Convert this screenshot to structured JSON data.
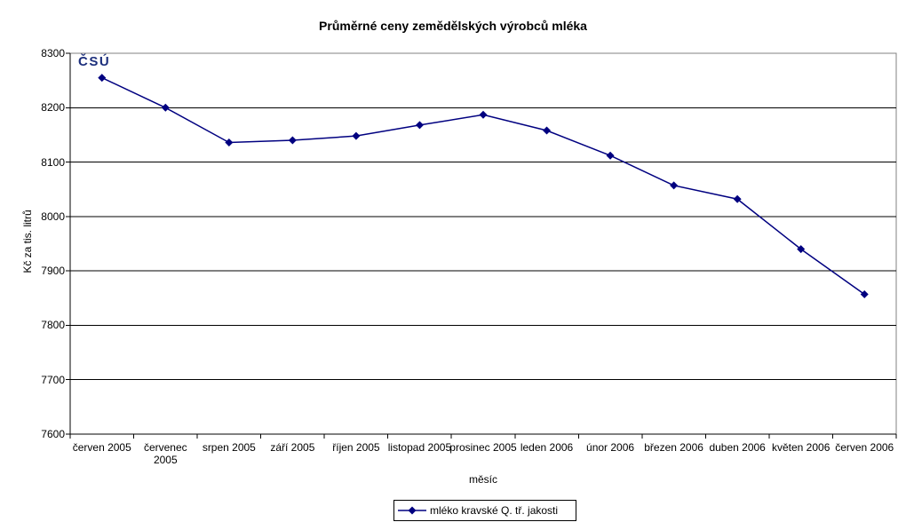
{
  "logo": {
    "text": "ČSÚ",
    "color": "#1c2f7c"
  },
  "chart_data": {
    "type": "line",
    "title": "Průměrné ceny zemědělských výrobců mléka",
    "xlabel": "měsíc",
    "ylabel": "Kč za tis. litrů",
    "categories": [
      "červen 2005",
      "červenec 2005",
      "srpen 2005",
      "září 2005",
      "říjen 2005",
      "listopad 2005",
      "prosinec 2005",
      "leden 2006",
      "únor 2006",
      "březen 2006",
      "duben 2006",
      "květen 2006",
      "červen 2006"
    ],
    "series": [
      {
        "name": "mléko kravské Q. tř. jakosti",
        "values": [
          8255,
          8200,
          8136,
          8140,
          8148,
          8168,
          8187,
          8158,
          8112,
          8057,
          8032,
          7940,
          7857
        ]
      }
    ],
    "ylim": [
      7600,
      8300
    ],
    "ytick_step": 100,
    "yticks": [
      "7600",
      "7700",
      "7800",
      "7900",
      "8000",
      "8100",
      "8200",
      "8300"
    ],
    "grid": "horizontal-major",
    "legend_position": "bottom-center",
    "series_color": "#000080",
    "marker": "diamond",
    "gridline_color": "#000000",
    "axis_color": "#000000",
    "plot_border_color": "#808080",
    "wrap_category_index": 1
  }
}
